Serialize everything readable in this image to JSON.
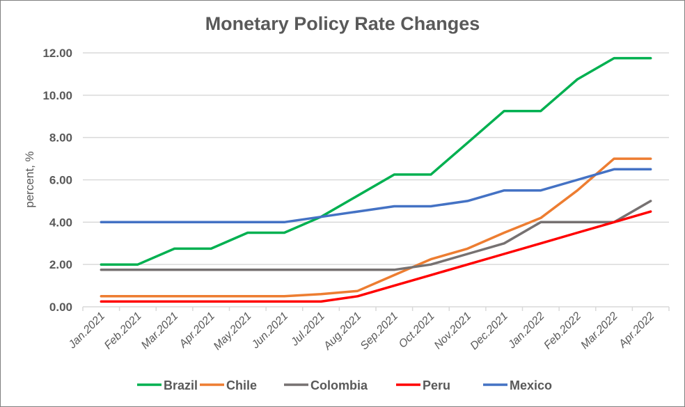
{
  "chart_data": {
    "type": "line",
    "title": "Monetary Policy Rate Changes",
    "xlabel": "",
    "ylabel": "percent, %",
    "ylim": [
      0,
      12
    ],
    "yticks": [
      "0.00",
      "2.00",
      "4.00",
      "6.00",
      "8.00",
      "10.00",
      "12.00"
    ],
    "grid": true,
    "legend_position": "bottom",
    "categories": [
      "Jan.2021",
      "Feb.2021",
      "Mar.2021",
      "Apr.2021",
      "May.2021",
      "Jun.2021",
      "Jul.2021",
      "Aug.2021",
      "Sep.2021",
      "Oct.2021",
      "Nov.2021",
      "Dec.2021",
      "Jan.2022",
      "Feb.2022",
      "Mar.2022",
      "Apr.2022"
    ],
    "series": [
      {
        "name": "Brazil",
        "color": "#00b050",
        "values": [
          2.0,
          2.0,
          2.75,
          2.75,
          3.5,
          3.5,
          4.25,
          5.25,
          6.25,
          6.25,
          7.75,
          9.25,
          9.25,
          10.75,
          11.75,
          11.75
        ]
      },
      {
        "name": "Chile",
        "color": "#ed7d31",
        "values": [
          0.5,
          0.5,
          0.5,
          0.5,
          0.5,
          0.5,
          0.6,
          0.75,
          1.5,
          2.25,
          2.75,
          3.5,
          4.2,
          5.5,
          7.0,
          7.0
        ]
      },
      {
        "name": "Colombia",
        "color": "#767171",
        "values": [
          1.75,
          1.75,
          1.75,
          1.75,
          1.75,
          1.75,
          1.75,
          1.75,
          1.75,
          2.0,
          2.5,
          3.0,
          4.0,
          4.0,
          4.0,
          5.0
        ]
      },
      {
        "name": "Peru",
        "color": "#ff0000",
        "values": [
          0.25,
          0.25,
          0.25,
          0.25,
          0.25,
          0.25,
          0.25,
          0.5,
          1.0,
          1.5,
          2.0,
          2.5,
          3.0,
          3.5,
          4.0,
          4.5
        ]
      },
      {
        "name": "Mexico",
        "color": "#4472c4",
        "values": [
          4.0,
          4.0,
          4.0,
          4.0,
          4.0,
          4.0,
          4.25,
          4.5,
          4.75,
          4.75,
          5.0,
          5.5,
          5.5,
          6.0,
          6.5,
          6.5
        ]
      }
    ]
  }
}
